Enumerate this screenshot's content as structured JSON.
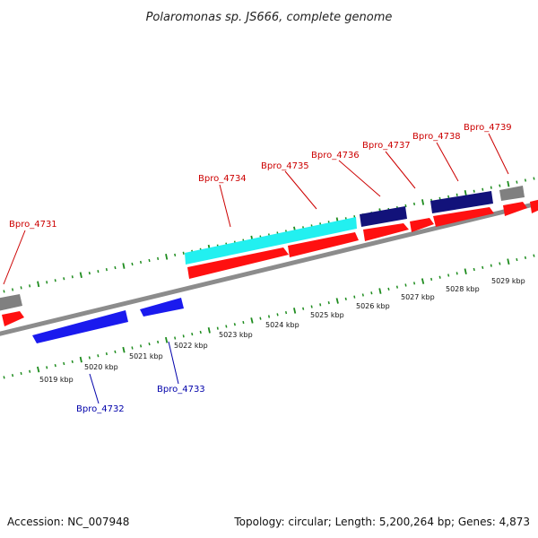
{
  "title": "Polaromonas sp. JS666, complete genome",
  "footer": {
    "accession": "Accession: NC_007948",
    "summary": "Topology: circular; Length: 5,200,264 bp; Genes: 4,873"
  },
  "colors": {
    "backbone": "#8c8c8c",
    "tick": "#1e8c1e",
    "forward_gene": "#ff1010",
    "reverse_gene": "#1a1aee",
    "cyan_feature": "#22f0f0",
    "navy_feature": "#12127a",
    "gray_feature": "#808080",
    "forward_label": "#cc0000",
    "reverse_label": "#0000aa"
  },
  "kbp_ticks": [
    {
      "value": 5019,
      "label": "5019 kbp"
    },
    {
      "value": 5020,
      "label": "5020 kbp"
    },
    {
      "value": 5021,
      "label": "5021 kbp"
    },
    {
      "value": 5022,
      "label": "5022 kbp"
    },
    {
      "value": 5023,
      "label": "5023 kbp"
    },
    {
      "value": 5024,
      "label": "5024 kbp"
    },
    {
      "value": 5025,
      "label": "5025 kbp"
    },
    {
      "value": 5026,
      "label": "5026 kbp"
    },
    {
      "value": 5027,
      "label": "5027 kbp"
    },
    {
      "value": 5028,
      "label": "5028 kbp"
    },
    {
      "value": 5029,
      "label": "5029 kbp"
    }
  ],
  "forward_genes": [
    {
      "id": "Bpro_4731",
      "label": "Bpro_4731"
    },
    {
      "id": "Bpro_4734",
      "label": "Bpro_4734"
    },
    {
      "id": "Bpro_4735",
      "label": "Bpro_4735"
    },
    {
      "id": "Bpro_4736",
      "label": "Bpro_4736"
    },
    {
      "id": "Bpro_4737",
      "label": "Bpro_4737"
    },
    {
      "id": "Bpro_4738",
      "label": "Bpro_4738"
    },
    {
      "id": "Bpro_4739",
      "label": "Bpro_4739"
    }
  ],
  "reverse_genes": [
    {
      "id": "Bpro_4732",
      "label": "Bpro_4732"
    },
    {
      "id": "Bpro_4733",
      "label": "Bpro_4733"
    }
  ]
}
